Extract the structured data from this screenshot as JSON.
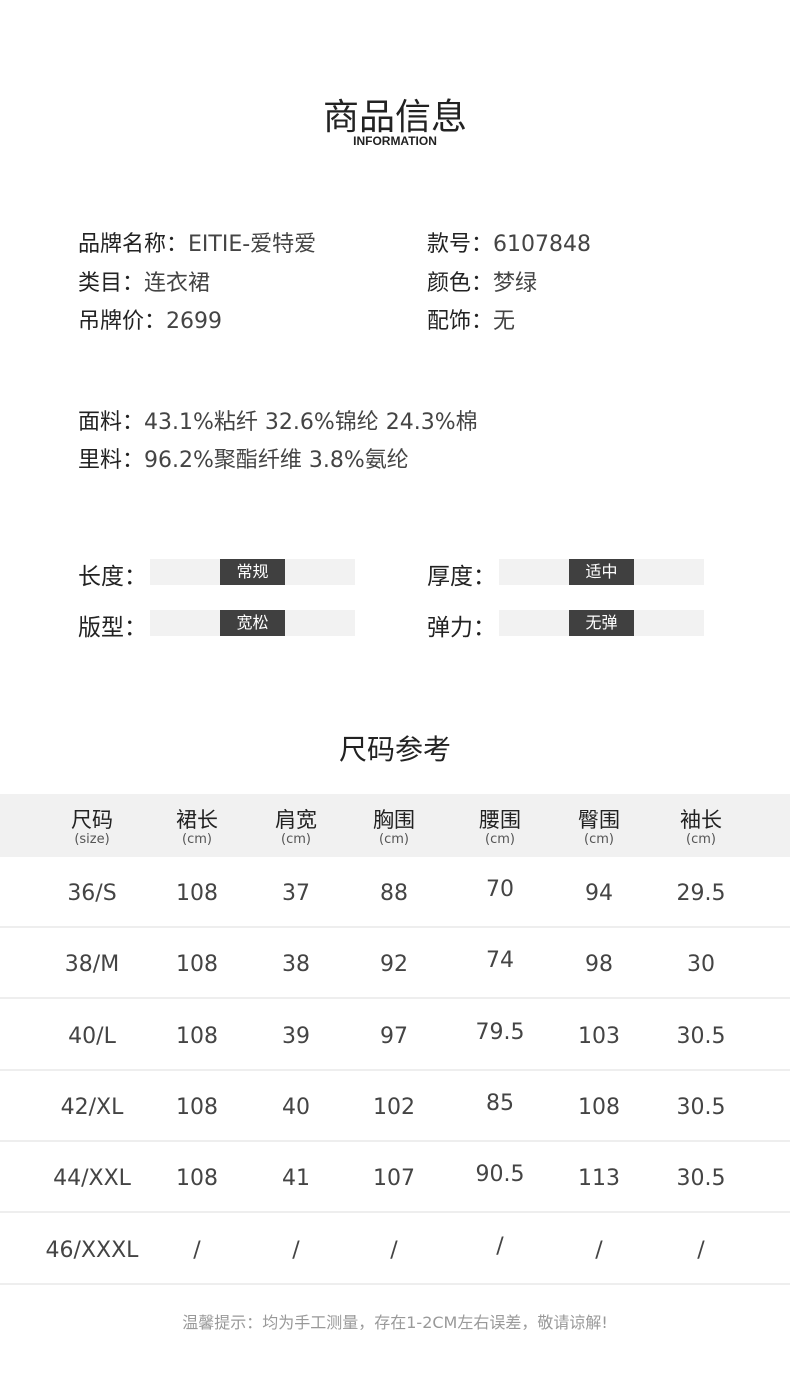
{
  "header": {
    "title": "商品信息",
    "subtitle": "INFORMATION"
  },
  "info": [
    {
      "label": "品牌名称：",
      "value": "EITIE-爱特爱"
    },
    {
      "label": "款号：",
      "value": "6107848"
    },
    {
      "label": "类目：",
      "value": "连衣裙"
    },
    {
      "label": "颜色：",
      "value": "梦绿"
    },
    {
      "label": "吊牌价：",
      "value": "2699"
    },
    {
      "label": "配饰：",
      "value": "无"
    }
  ],
  "fabric": [
    {
      "label": "面料：",
      "value": "43.1%粘纤 32.6%锦纶 24.3%棉"
    },
    {
      "label": "里料：",
      "value": "96.2%聚酯纤维 3.8%氨纶"
    }
  ],
  "attributes": [
    {
      "label": "长度：",
      "value": "常规"
    },
    {
      "label": "厚度：",
      "value": "适中"
    },
    {
      "label": "版型：",
      "value": "宽松"
    },
    {
      "label": "弹力：",
      "value": "无弹"
    }
  ],
  "size_title": "尺码参考",
  "table": {
    "headers": [
      [
        "尺码",
        "(size)"
      ],
      [
        "裙长",
        "(cm)"
      ],
      [
        "肩宽",
        "(cm)"
      ],
      [
        "胸围",
        "(cm)"
      ],
      [
        "腰围",
        "(cm)"
      ],
      [
        "臀围",
        "(cm)"
      ],
      [
        "袖长",
        "(cm)"
      ]
    ],
    "rows": [
      [
        "36/S",
        "108",
        "37",
        "88",
        "70",
        "94",
        "29.5"
      ],
      [
        "38/M",
        "108",
        "38",
        "92",
        "74",
        "98",
        "30"
      ],
      [
        "40/L",
        "108",
        "39",
        "97",
        "79.5",
        "103",
        "30.5"
      ],
      [
        "42/XL",
        "108",
        "40",
        "102",
        "85",
        "108",
        "30.5"
      ],
      [
        "44/XXL",
        "108",
        "41",
        "107",
        "90.5",
        "113",
        "30.5"
      ],
      [
        "46/XXXL",
        "/",
        "/",
        "/",
        "/",
        "/",
        "/"
      ]
    ]
  },
  "note": "温馨提示：均为手工测量，存在1-2CM左右误差，敬请谅解!"
}
